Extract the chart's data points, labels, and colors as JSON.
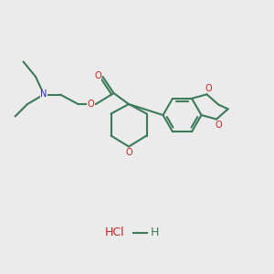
{
  "bg_color": "#ebebeb",
  "bond_color": "#3d7a5a",
  "n_color": "#2020cc",
  "o_color": "#cc2020",
  "line_width": 1.5,
  "figsize": [
    3.0,
    3.0
  ],
  "dpi": 100,
  "xlim": [
    0,
    10
  ],
  "ylim": [
    0,
    10
  ]
}
